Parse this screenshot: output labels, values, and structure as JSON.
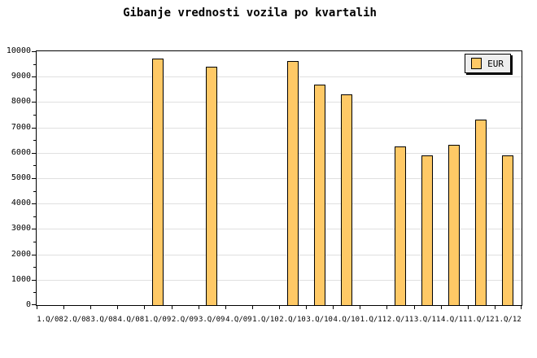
{
  "title": "Gibanje vrednosti vozila po kvartalih",
  "legend": {
    "label": "EUR",
    "position": "top-right"
  },
  "colors": {
    "background": "#ffffff",
    "bar_fill": "#ffc966",
    "bar_border": "#000000",
    "gridline": "#e0e0e0",
    "axis": "#000000",
    "legend_bg": "#eeeeee",
    "text": "#000000"
  },
  "chart_data": {
    "type": "bar",
    "title": "Gibanje vrednosti vozila po kvartalih",
    "series_name": "EUR",
    "categories": [
      "1.Q/08",
      "2.Q/08",
      "3.Q/08",
      "4.Q/08",
      "1.Q/09",
      "2.Q/09",
      "3.Q/09",
      "4.Q/09",
      "1.Q/10",
      "2.Q/10",
      "3.Q/10",
      "4.Q/10",
      "1.Q/11",
      "2.Q/11",
      "3.Q/11",
      "4.Q/11",
      "1.Q/12",
      "1.Q/12"
    ],
    "values": [
      null,
      null,
      null,
      null,
      9700,
      null,
      9400,
      null,
      null,
      9600,
      8700,
      8300,
      null,
      6250,
      5900,
      6300,
      7300,
      5900
    ],
    "xlabel": "",
    "ylabel": "",
    "ylim": [
      0,
      10000
    ],
    "ytick_step": 1000,
    "yminor_step": 500,
    "grid": true,
    "legend_position": "top-right"
  }
}
